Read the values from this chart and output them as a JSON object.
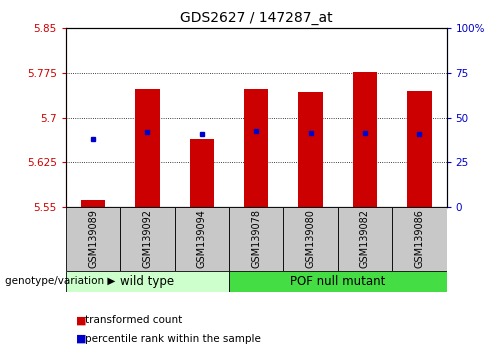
{
  "title": "GDS2627 / 147287_at",
  "samples": [
    "GSM139089",
    "GSM139092",
    "GSM139094",
    "GSM139078",
    "GSM139080",
    "GSM139082",
    "GSM139086"
  ],
  "bar_bottoms": [
    5.55,
    5.55,
    5.55,
    5.55,
    5.55,
    5.55,
    5.55
  ],
  "bar_tops": [
    5.562,
    5.748,
    5.665,
    5.748,
    5.743,
    5.777,
    5.744
  ],
  "percentile_values": [
    5.664,
    5.676,
    5.672,
    5.678,
    5.674,
    5.675,
    5.672
  ],
  "bar_color": "#cc0000",
  "percentile_color": "#0000cc",
  "ylim_left": [
    5.55,
    5.85
  ],
  "ylim_right": [
    0,
    100
  ],
  "yticks_left": [
    5.55,
    5.625,
    5.7,
    5.775,
    5.85
  ],
  "ytick_labels_left": [
    "5.55",
    "5.625",
    "5.7",
    "5.775",
    "5.85"
  ],
  "yticks_right": [
    0,
    25,
    50,
    75,
    100
  ],
  "ytick_labels_right": [
    "0",
    "25",
    "50",
    "75",
    "100%"
  ],
  "tick_color_left": "#cc0000",
  "tick_color_right": "#0000cc",
  "bar_width": 0.45,
  "group_wt_color": "#ccffcc",
  "group_pof_color": "#44dd44",
  "gray_box_color": "#c8c8c8",
  "figsize": [
    4.88,
    3.54
  ],
  "dpi": 100
}
